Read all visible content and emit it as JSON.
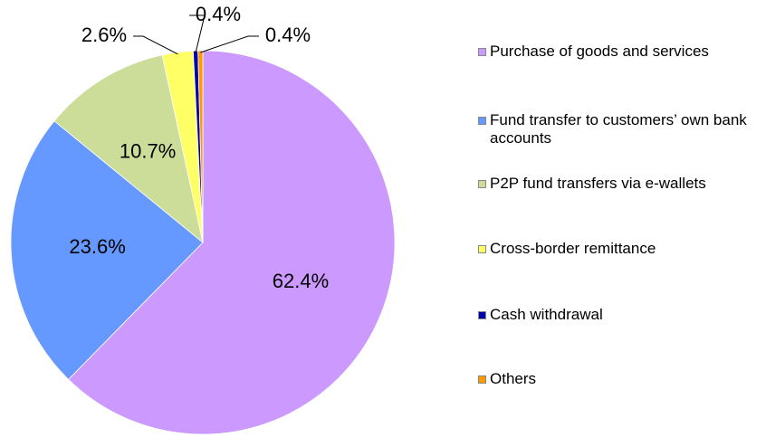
{
  "chart_data": {
    "type": "pie",
    "categories": [
      "Purchase of goods and services",
      "Fund transfer to customers’ own bank accounts",
      "P2P fund transfers via e-wallets",
      "Cross-border remittance",
      "Cash withdrawal",
      "Others"
    ],
    "values": [
      62.4,
      23.6,
      10.7,
      2.6,
      0.4,
      0.4
    ],
    "value_labels": [
      "62.4%",
      "23.6%",
      "10.7%",
      "2.6%",
      "0.4%",
      "0.4%"
    ],
    "colors": [
      "#cc99ff",
      "#6699ff",
      "#ccdd99",
      "#ffff66",
      "#0000aa",
      "#ff9900"
    ],
    "legend": "right"
  }
}
